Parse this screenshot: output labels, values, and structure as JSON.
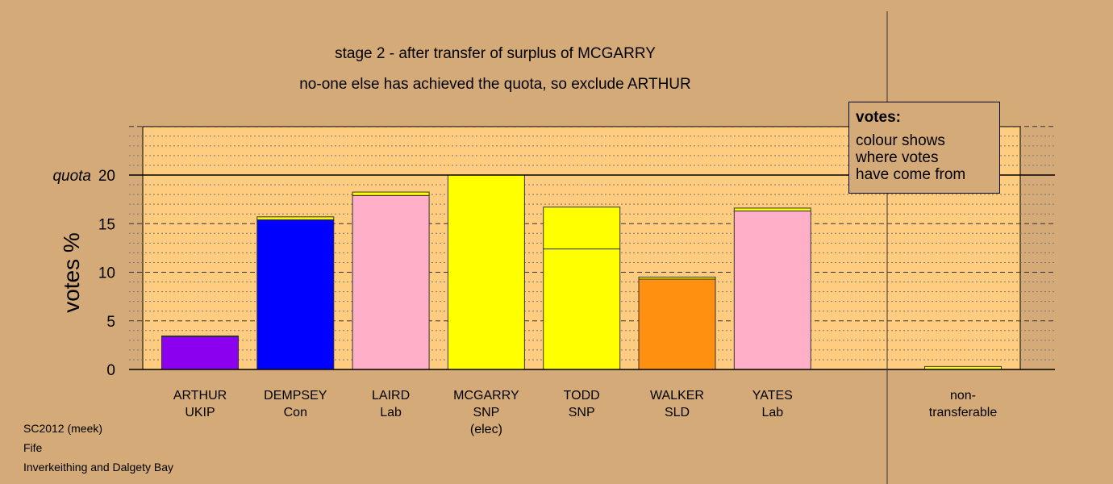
{
  "title_line1": "stage 2 - after transfer of surplus of MCGARRY",
  "title_line2": "no-one else has achieved the quota, so exclude ARTHUR",
  "legend": {
    "title": "votes:",
    "lines": [
      "colour shows",
      "where votes",
      "have come from"
    ]
  },
  "footer": [
    "SC2012 (meek)",
    "Fife",
    "Inverkeithing and Dalgety Bay"
  ],
  "colors": {
    "background": "#d4aa78",
    "plot_area": "#ffcc80"
  },
  "chart_data": {
    "type": "bar",
    "stacked": true,
    "ylabel": "votes %",
    "ylim": [
      0,
      25
    ],
    "yticks": [
      0,
      5,
      10,
      15,
      20
    ],
    "quota": {
      "value": 20,
      "label": "quota"
    },
    "grid": "dashed major every 5, dotted minor every 1",
    "candidates": [
      {
        "name": "ARTHUR",
        "party": "UKIP",
        "note": "",
        "segments": [
          {
            "value": 3.4,
            "color": "#8b00ee"
          },
          {
            "value": 0.05,
            "color": "#ffff00"
          }
        ]
      },
      {
        "name": "DEMPSEY",
        "party": "Con",
        "note": "",
        "segments": [
          {
            "value": 15.4,
            "color": "#0000ff"
          },
          {
            "value": 0.3,
            "color": "#ffff00"
          }
        ]
      },
      {
        "name": "LAIRD",
        "party": "Lab",
        "note": "",
        "segments": [
          {
            "value": 17.9,
            "color": "#ffb0c8"
          },
          {
            "value": 0.35,
            "color": "#ffff00"
          }
        ]
      },
      {
        "name": "MCGARRY",
        "party": "SNP",
        "note": "(elec)",
        "segments": [
          {
            "value": 20.0,
            "color": "#ffff00"
          }
        ]
      },
      {
        "name": "TODD",
        "party": "SNP",
        "note": "",
        "segments": [
          {
            "value": 12.4,
            "color": "#ffff00"
          },
          {
            "value": 4.3,
            "color": "#ffff00"
          }
        ]
      },
      {
        "name": "WALKER",
        "party": "SLD",
        "note": "",
        "segments": [
          {
            "value": 9.3,
            "color": "#ff9010"
          },
          {
            "value": 0.2,
            "color": "#ffff00"
          }
        ]
      },
      {
        "name": "YATES",
        "party": "Lab",
        "note": "",
        "segments": [
          {
            "value": 16.3,
            "color": "#ffb0c8"
          },
          {
            "value": 0.3,
            "color": "#ffff00"
          }
        ]
      }
    ],
    "nontransferable": {
      "label_line1": "non-",
      "label_line2": "transferable",
      "value": 0.3,
      "color": "#ffff00"
    }
  }
}
